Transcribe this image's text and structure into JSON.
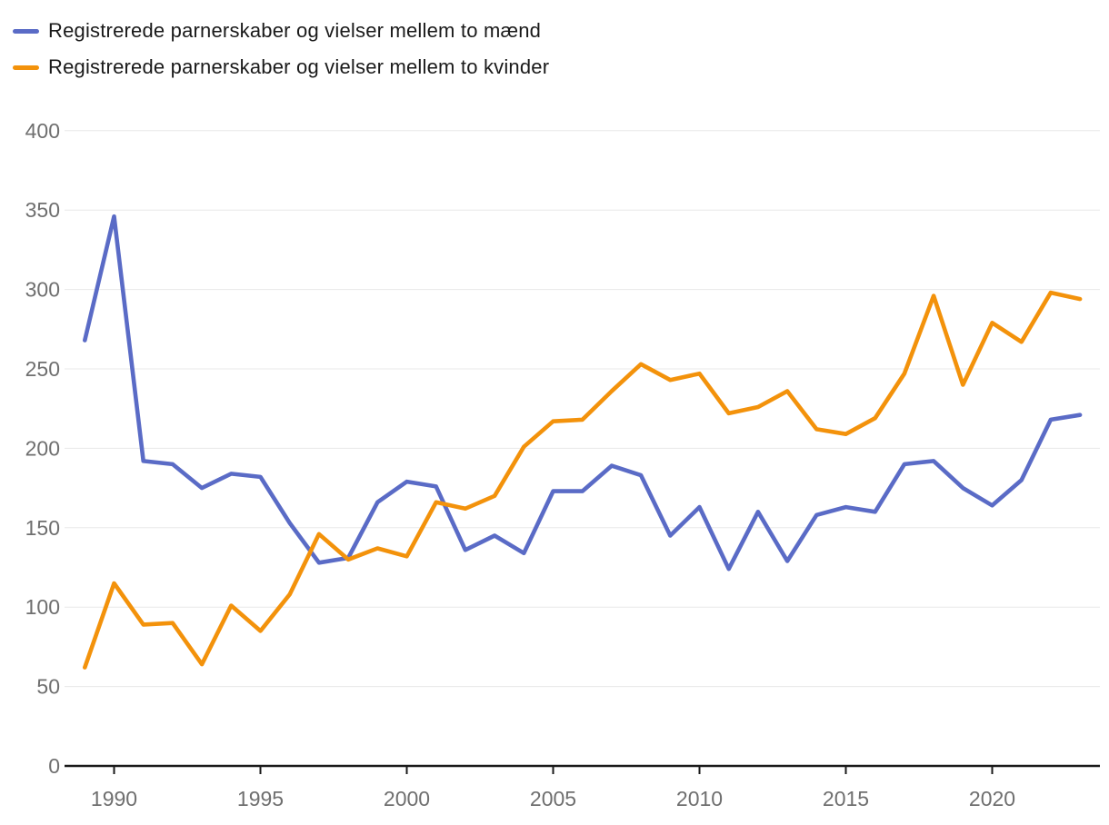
{
  "chart_data": {
    "type": "line",
    "title": "",
    "xlabel": "",
    "ylabel": "",
    "grid": true,
    "legend_position": "top-left",
    "xlim": [
      1989,
      2023
    ],
    "ylim": [
      0,
      400
    ],
    "x": [
      1989,
      1990,
      1991,
      1992,
      1993,
      1994,
      1995,
      1996,
      1997,
      1998,
      1999,
      2000,
      2001,
      2002,
      2003,
      2004,
      2005,
      2006,
      2007,
      2008,
      2009,
      2010,
      2011,
      2012,
      2013,
      2014,
      2015,
      2016,
      2017,
      2018,
      2019,
      2020,
      2021,
      2022,
      2023
    ],
    "series": [
      {
        "key": "men",
        "name": "Registrerede parnerskaber og vielser mellem to mænd",
        "color": "#5A6BC6",
        "values": [
          268,
          346,
          192,
          190,
          175,
          184,
          182,
          153,
          128,
          131,
          166,
          179,
          176,
          136,
          145,
          134,
          173,
          173,
          189,
          183,
          145,
          163,
          124,
          160,
          129,
          158,
          163,
          160,
          190,
          192,
          175,
          164,
          180,
          218,
          221
        ]
      },
      {
        "key": "women",
        "name": "Registrerede parnerskaber og vielser mellem to kvinder",
        "color": "#F3920B",
        "values": [
          62,
          115,
          89,
          90,
          64,
          101,
          85,
          108,
          146,
          130,
          137,
          132,
          166,
          162,
          170,
          201,
          217,
          218,
          236,
          253,
          243,
          247,
          222,
          226,
          236,
          212,
          209,
          219,
          247,
          296,
          240,
          279,
          267,
          298,
          294
        ]
      }
    ]
  },
  "axis": {
    "y_ticks": [
      "0",
      "50",
      "100",
      "150",
      "200",
      "250",
      "300",
      "350",
      "400"
    ],
    "y_tick_values": [
      0,
      50,
      100,
      150,
      200,
      250,
      300,
      350,
      400
    ],
    "x_ticks": [
      "1990",
      "1995",
      "2000",
      "2005",
      "2010",
      "2015",
      "2020"
    ],
    "x_tick_values": [
      1990,
      1995,
      2000,
      2005,
      2010,
      2015,
      2020
    ]
  },
  "colors": {
    "grid_line": "#e8e8e8",
    "axis_line": "#1a1a1a",
    "axis_label": "#6f6f6f",
    "background": "#ffffff",
    "legend_text": "#1a1a1a"
  }
}
